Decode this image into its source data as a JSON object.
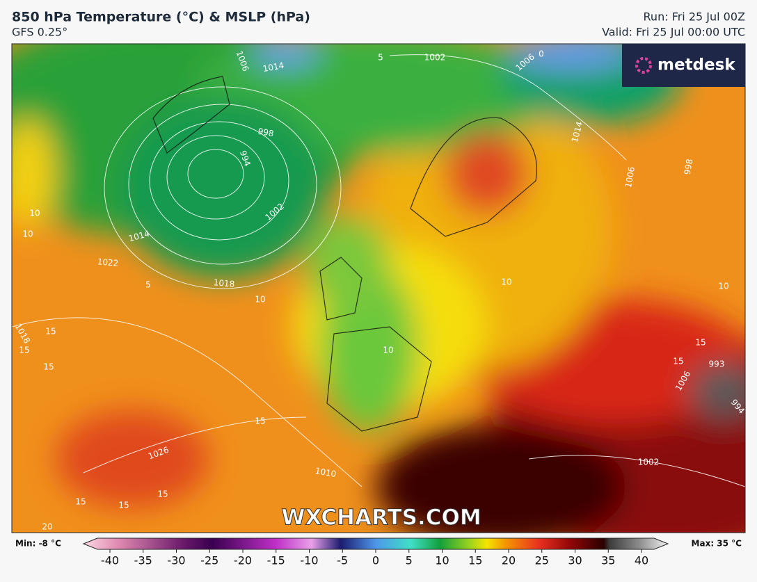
{
  "header": {
    "title": "850 hPa Temperature (°C) & MSLP (hPa)",
    "model": "GFS 0.25°",
    "run": "Run: Fri 25 Jul 00Z",
    "valid": "Valid: Fri 25 Jul 00:00 UTC"
  },
  "logo": "metdesk",
  "watermark": "WXCHARTS.COM",
  "map_labels": [
    "1002",
    "1006",
    "1014",
    "998",
    "994",
    "1002",
    "1014",
    "1022",
    "1018",
    "10",
    "10",
    "5",
    "0",
    "1006",
    "1014",
    "998",
    "10",
    "10",
    "15",
    "15",
    "15",
    "1018",
    "15",
    "1026",
    "1010",
    "15",
    "15",
    "15",
    "20",
    "1002",
    "994",
    "993",
    "15",
    "15",
    "1006",
    "10",
    "1006",
    "5",
    "10"
  ],
  "legend": {
    "min": "Min: -8 °C",
    "max": "Max: 35 °C",
    "ticks": [
      -40,
      -35,
      -30,
      -25,
      -20,
      -15,
      -10,
      -5,
      0,
      5,
      10,
      15,
      20,
      25,
      30,
      35,
      40
    ]
  }
}
